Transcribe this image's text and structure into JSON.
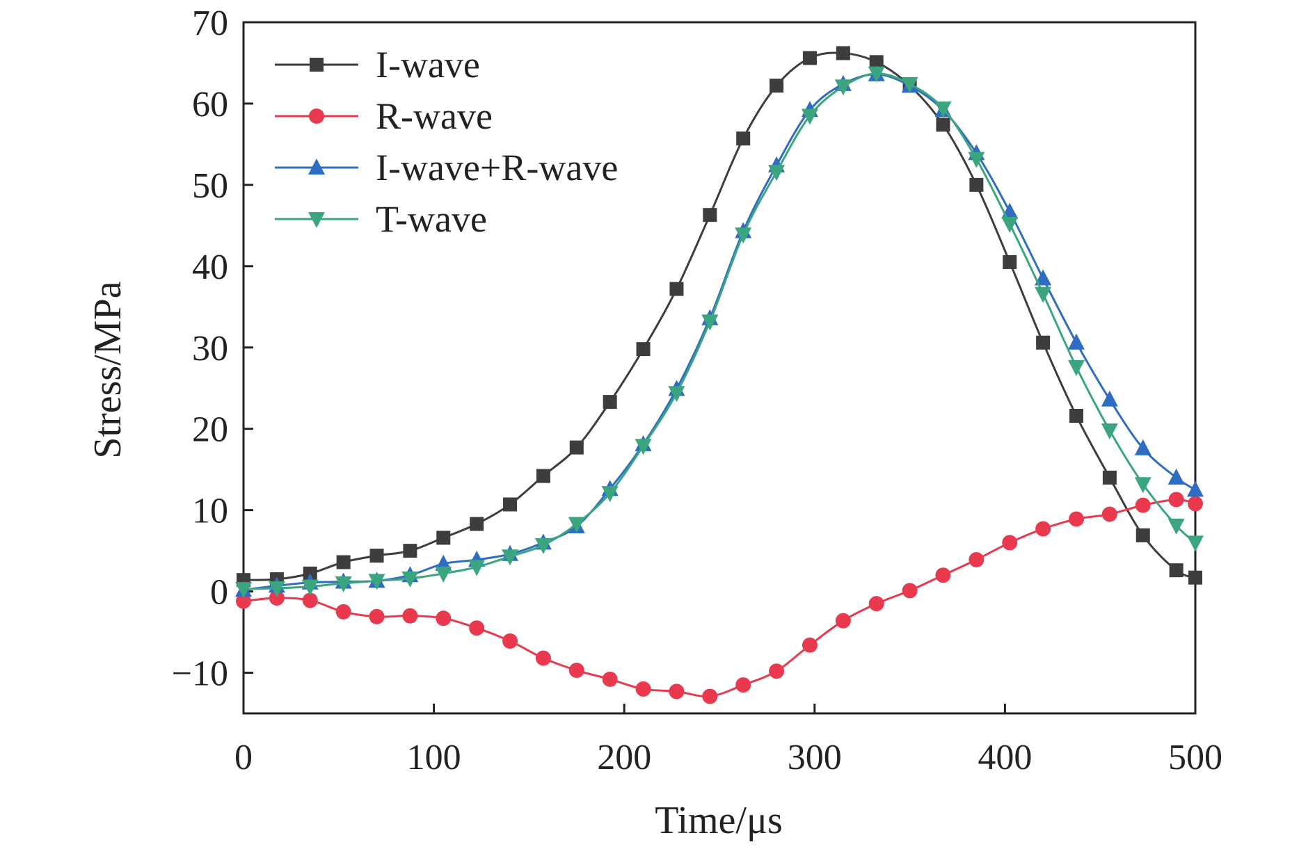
{
  "chart_data": {
    "type": "line",
    "title": "",
    "xlabel": "Time/μs",
    "ylabel": "Stress/MPa",
    "xlim": [
      0,
      500
    ],
    "ylim": [
      -15,
      70
    ],
    "xticks": [
      0,
      100,
      200,
      300,
      400,
      500
    ],
    "yticks": [
      -10,
      0,
      10,
      20,
      30,
      40,
      50,
      60,
      70
    ],
    "grid": false,
    "legend_position": "top-left",
    "x": [
      0,
      17.5,
      35,
      52.5,
      70,
      87.5,
      105,
      122.5,
      140,
      157.5,
      175,
      192.5,
      210,
      227.5,
      245,
      262.5,
      280,
      297.5,
      315,
      332.5,
      350,
      367.5,
      385,
      402.5,
      420,
      437.5,
      455,
      472.5,
      490,
      500
    ],
    "series": [
      {
        "name": "I-wave",
        "color": "#3d3d3d",
        "marker": "square",
        "values": [
          1.4,
          1.5,
          2.2,
          3.6,
          4.4,
          5.0,
          6.6,
          8.3,
          10.7,
          14.2,
          17.7,
          23.3,
          29.8,
          37.2,
          46.3,
          55.7,
          62.2,
          65.6,
          66.2,
          65.1,
          62.2,
          57.4,
          50.0,
          40.5,
          30.6,
          21.6,
          14.0,
          6.9,
          2.6,
          1.7
        ]
      },
      {
        "name": "R-wave",
        "color": "#e8394e",
        "marker": "circle",
        "values": [
          -1.2,
          -0.8,
          -1.1,
          -2.5,
          -3.1,
          -3.0,
          -3.3,
          -4.5,
          -6.1,
          -8.2,
          -9.7,
          -10.8,
          -12.0,
          -12.3,
          -12.9,
          -11.5,
          -9.8,
          -6.6,
          -3.6,
          -1.5,
          0.1,
          2.0,
          3.9,
          6.0,
          7.7,
          8.9,
          9.5,
          10.6,
          11.3,
          10.8
        ]
      },
      {
        "name": "I-wave+R-wave",
        "color": "#2f6dc2",
        "marker": "triangle-up",
        "values": [
          0.2,
          0.7,
          1.1,
          1.2,
          1.3,
          2.0,
          3.4,
          3.9,
          4.6,
          6.0,
          8.0,
          12.6,
          18.1,
          24.9,
          33.6,
          44.3,
          52.4,
          59.2,
          62.4,
          63.6,
          62.2,
          59.2,
          53.9,
          46.7,
          38.5,
          30.6,
          23.6,
          17.6,
          14.0,
          12.5
        ]
      },
      {
        "name": "T-wave",
        "color": "#3aa57f",
        "marker": "triangle-down",
        "values": [
          0.3,
          0.4,
          0.6,
          1.0,
          1.3,
          1.6,
          2.2,
          3.0,
          4.3,
          5.7,
          8.3,
          12.1,
          17.9,
          24.4,
          33.2,
          43.9,
          51.6,
          58.5,
          62.1,
          63.7,
          62.4,
          59.4,
          53.2,
          45.2,
          36.6,
          27.6,
          19.8,
          13.2,
          8.1,
          6.0
        ]
      }
    ]
  }
}
